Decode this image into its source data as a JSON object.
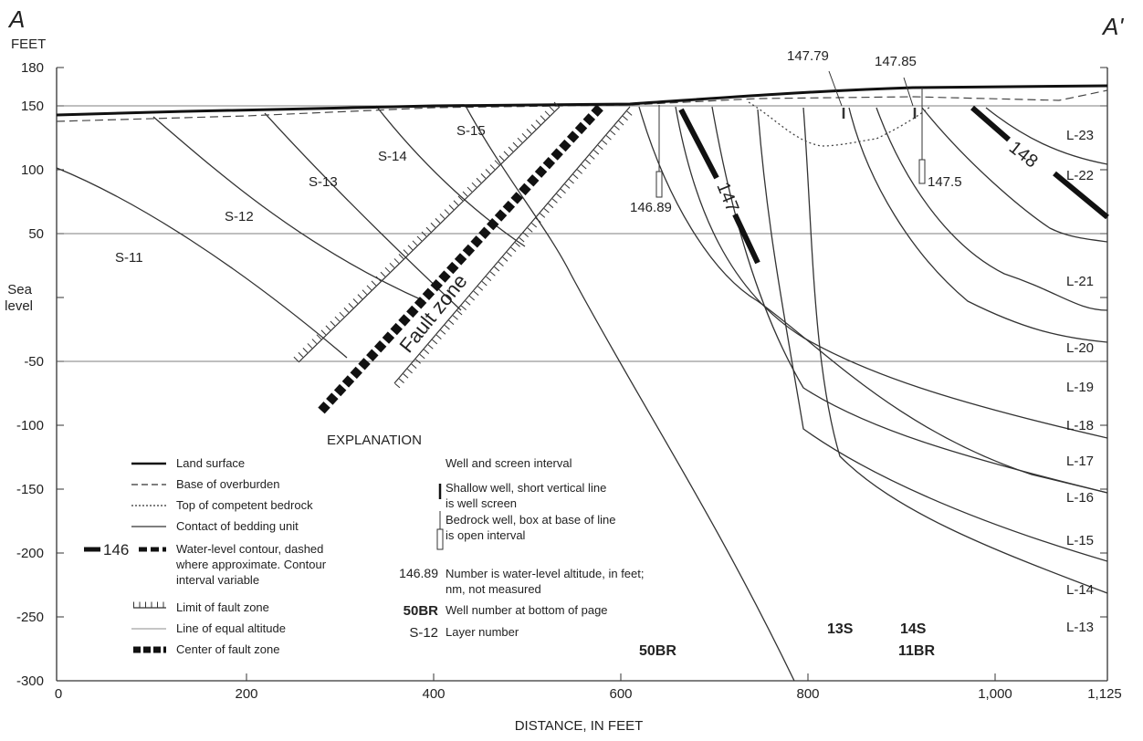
{
  "section_label_left": "A",
  "section_label_right": "A'",
  "y_axis": {
    "unit_label": "FEET",
    "tick_labels": [
      "180",
      "150",
      "100",
      "50",
      "Sea",
      "level",
      "-50",
      "-100",
      "-150",
      "-200",
      "-250",
      "-300"
    ]
  },
  "x_axis": {
    "title": "DISTANCE, IN FEET",
    "tick_labels": [
      "0",
      "200",
      "400",
      "600",
      "800",
      "1,000",
      "1,125"
    ]
  },
  "layers_left": [
    "S-11",
    "S-12",
    "S-13",
    "S-14",
    "S-15"
  ],
  "layers_right": [
    "L-23",
    "L-22",
    "L-21",
    "L-20",
    "L-19",
    "L-18",
    "L-17",
    "L-16",
    "L-15",
    "L-14",
    "L-13"
  ],
  "fault_label": "Fault zone",
  "contour_labels": [
    "147",
    "148"
  ],
  "water_levels": [
    "147.79",
    "147.85",
    "146.89",
    "147.5"
  ],
  "wells": [
    "50BR",
    "13S",
    "14S",
    "11BR"
  ],
  "explanation": {
    "title": "EXPLANATION",
    "left": [
      "Land surface",
      "Base of overburden",
      "Top of competent bedrock",
      "Contact of bedding unit",
      "Water-level contour, dashed",
      "where approximate. Contour",
      "interval variable",
      "Limit of fault zone",
      "Line of equal altitude",
      "Center of fault zone"
    ],
    "contour_sample": "146",
    "right": [
      "Well and screen interval",
      "Shallow well, short vertical line",
      "is well screen",
      "Bedrock well, box at base of line",
      "is open interval",
      "Number is water-level altitude, in feet;",
      "nm, not measured",
      "Well number at bottom of page",
      "Layer number"
    ],
    "sample_number": "146.89",
    "sample_well": "50BR",
    "sample_layer": "S-12"
  }
}
